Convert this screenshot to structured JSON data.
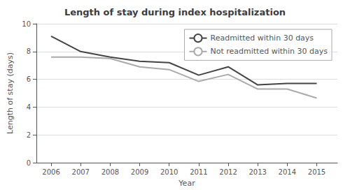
{
  "chart_data": {
    "type": "line",
    "title": "Length of stay during index hospitalization",
    "xlabel": "Year",
    "ylabel": "Length of stay (days)",
    "x": [
      2006,
      2007,
      2008,
      2009,
      2010,
      2011,
      2012,
      2013,
      2014,
      2015
    ],
    "series": [
      {
        "name": "Readmitted within 30 days",
        "color": "#444444",
        "values": [
          9.1,
          8.0,
          7.6,
          7.3,
          7.2,
          6.3,
          6.9,
          5.6,
          5.7,
          5.7
        ]
      },
      {
        "name": "Not readmitted within 30 days",
        "color": "#aaaaaa",
        "values": [
          7.6,
          7.6,
          7.5,
          6.9,
          6.7,
          5.85,
          6.35,
          5.3,
          5.3,
          4.65
        ]
      }
    ],
    "xlim": [
      2005.5,
      2015.7
    ],
    "xticks": [
      2006,
      2007,
      2008,
      2009,
      2010,
      2011,
      2012,
      2013,
      2014,
      2015
    ],
    "ylim": [
      0,
      10
    ],
    "yticks": [
      0,
      2,
      4,
      6,
      8,
      10
    ],
    "grid": true,
    "legend": "upper right"
  }
}
